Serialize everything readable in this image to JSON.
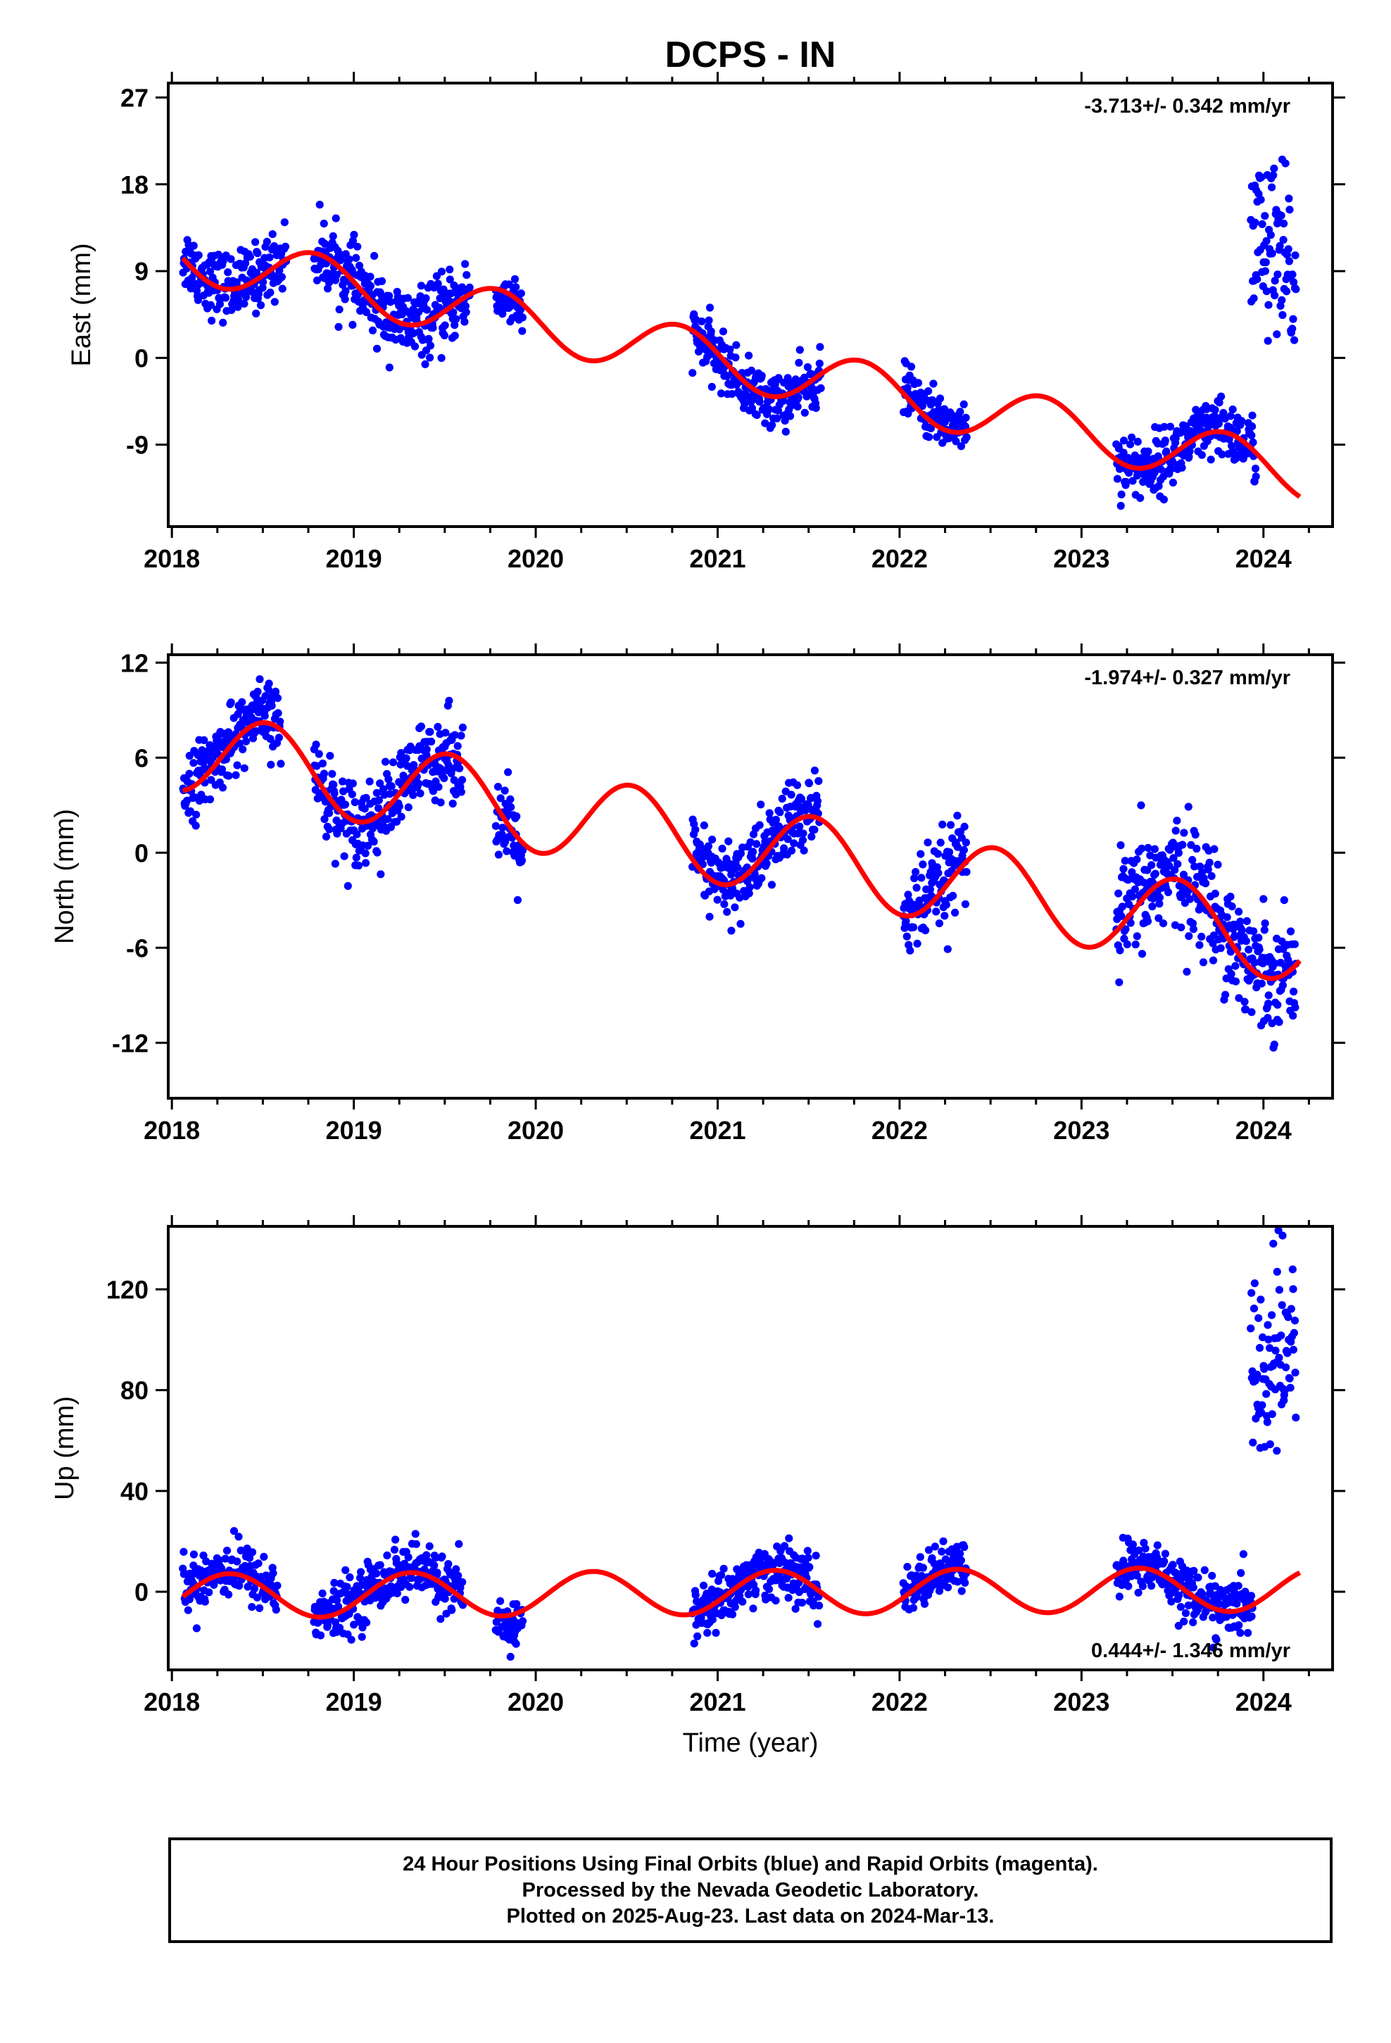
{
  "title": "DCPS - IN",
  "xlabel": "Time (year)",
  "footer": {
    "line1": "24 Hour Positions Using Final Orbits (blue) and Rapid Orbits (magenta).",
    "line2": "Processed by the Nevada Geodetic Laboratory.",
    "line3": "Plotted on 2025-Aug-23. Last data on 2024-Mar-13."
  },
  "colors": {
    "points": "#0000ff",
    "fit": "#ff0000",
    "axis": "#000000"
  },
  "chart_data": [
    {
      "type": "scatter",
      "ylabel": "East (mm)",
      "rate_text": "-3.713+/- 0.342 mm/yr",
      "rate_position": "top-right",
      "xlim": [
        2017.98,
        2024.38
      ],
      "ylim": [
        -17.5,
        28.5
      ],
      "xticks": [
        "2018",
        "2019",
        "2020",
        "2021",
        "2022",
        "2023",
        "2024"
      ],
      "yticks": [
        "27",
        "18",
        "9",
        "0",
        "-9"
      ],
      "yticks_values": [
        27,
        18,
        9,
        0,
        -9
      ],
      "grid": false,
      "fit": {
        "name": "model",
        "linear_intercept": 11.0,
        "trend": -3.713,
        "annual_sin": -2.7,
        "annual_cos": 0.6
      },
      "data_segments": [
        {
          "start": 2018.06,
          "end": 2018.63,
          "offset": 0.3,
          "spread": 1.7
        },
        {
          "start": 2018.78,
          "end": 2019.64,
          "offset": 0.0,
          "spread": 1.8
        },
        {
          "start": 2019.78,
          "end": 2019.93,
          "offset": -0.8,
          "spread": 1.3
        },
        {
          "start": 2020.86,
          "end": 2021.57,
          "offset": -0.4,
          "spread": 1.4
        },
        {
          "start": 2022.02,
          "end": 2022.37,
          "offset": 0.8,
          "spread": 1.3
        },
        {
          "start": 2023.19,
          "end": 2023.96,
          "offset": 0.1,
          "spread": 1.6
        },
        {
          "start": 2023.93,
          "end": 2024.18,
          "offset": 22.0,
          "spread": 5.0
        }
      ]
    },
    {
      "type": "scatter",
      "ylabel": "North (mm)",
      "rate_text": "-1.974+/- 0.327 mm/yr",
      "rate_position": "top-right",
      "xlim": [
        2017.98,
        2024.38
      ],
      "ylim": [
        -15.5,
        12.5
      ],
      "xticks": [
        "2018",
        "2019",
        "2020",
        "2021",
        "2022",
        "2023",
        "2024"
      ],
      "yticks": [
        "12",
        "6",
        "0",
        "-6",
        "-12"
      ],
      "yticks_values": [
        12,
        6,
        0,
        -6,
        -12
      ],
      "grid": false,
      "fit": {
        "name": "model",
        "linear_intercept": 6.6,
        "trend": -1.974,
        "annual_sin": -0.4,
        "annual_cos": -2.6
      },
      "data_segments": [
        {
          "start": 2018.06,
          "end": 2018.6,
          "offset": 0.3,
          "spread": 1.1
        },
        {
          "start": 2018.78,
          "end": 2019.6,
          "offset": 0.0,
          "spread": 1.3
        },
        {
          "start": 2019.78,
          "end": 2019.93,
          "offset": -0.5,
          "spread": 1.4
        },
        {
          "start": 2020.86,
          "end": 2021.56,
          "offset": 0.2,
          "spread": 1.3
        },
        {
          "start": 2022.02,
          "end": 2022.37,
          "offset": 0.4,
          "spread": 1.5
        },
        {
          "start": 2023.19,
          "end": 2024.18,
          "offset": 0.4,
          "spread": 1.8
        }
      ]
    },
    {
      "type": "scatter",
      "ylabel": "Up (mm)",
      "rate_text": "0.444+/- 1.346 mm/yr",
      "rate_position": "bottom-right",
      "xlim": [
        2017.98,
        2024.38
      ],
      "ylim": [
        -31,
        145
      ],
      "xticks": [
        "2018",
        "2019",
        "2020",
        "2021",
        "2022",
        "2023",
        "2024"
      ],
      "yticks": [
        "120",
        "80",
        "40",
        "0"
      ],
      "yticks_values": [
        120,
        80,
        40,
        0
      ],
      "grid": false,
      "fit": {
        "name": "model",
        "linear_intercept": -1.7,
        "trend": 0.444,
        "annual_sin": 8.0,
        "annual_cos": -3.5
      },
      "data_segments": [
        {
          "start": 2018.06,
          "end": 2018.58,
          "offset": 2.0,
          "spread": 5.5
        },
        {
          "start": 2018.78,
          "end": 2019.6,
          "offset": 1.0,
          "spread": 5.5
        },
        {
          "start": 2019.78,
          "end": 2019.93,
          "offset": -4.0,
          "spread": 5.0
        },
        {
          "start": 2020.86,
          "end": 2021.56,
          "offset": 0.0,
          "spread": 5.5
        },
        {
          "start": 2022.02,
          "end": 2022.37,
          "offset": 0.5,
          "spread": 5.0
        },
        {
          "start": 2023.19,
          "end": 2023.94,
          "offset": 1.0,
          "spread": 5.5
        },
        {
          "start": 2023.93,
          "end": 2024.18,
          "offset": 90.0,
          "spread": 20.0
        }
      ]
    }
  ]
}
